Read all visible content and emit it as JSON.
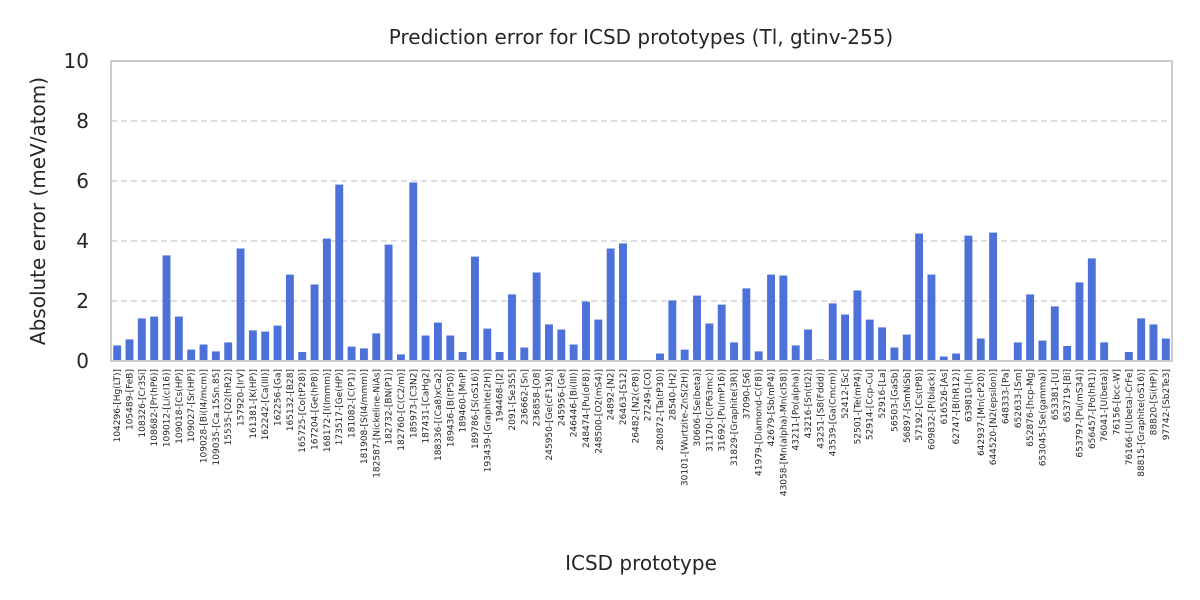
{
  "chart_data": {
    "type": "bar",
    "title": "Prediction error for ICSD prototypes (Tl, gtinv-255)",
    "xlabel": "ICSD prototype",
    "ylabel": "Absolute error (meV/atom)",
    "ylim": [
      0,
      10
    ],
    "yticks": [
      0,
      2,
      4,
      6,
      8,
      10
    ],
    "grid": "y-dashed",
    "bar_color": "#4c72d9",
    "categories": [
      "104296-[Hg(LT)]",
      "105489-[FeB]",
      "108326-[Cr3Si]",
      "108682-[Pr(hP6)]",
      "109012-[Li(cI16)]",
      "109018-[Cs(HP)]",
      "109027-[Sr(HP)]",
      "109028-[Bi(I4/mcm)]",
      "109035-[Ca.15Sn.85]",
      "15535-[O2(hR2)]",
      "157920-[IrV]",
      "161381-[K(HP)]",
      "162242-[Ca(III)]",
      "162256-[Ga]",
      "165132-[B28]",
      "165725-[Co(tP28)]",
      "167204-[Ge(hP8)]",
      "168172-[I(Immm)]",
      "173517-[Ge(HP)]",
      "181082-[C(P1)]",
      "181908-[S(I4/mmm)]",
      "182587-[Nickeline-NiAs]",
      "182732-[BN(P1)]",
      "182760-[C(C2/m)]",
      "185973-[C3N2]",
      "187431-[CaHg2]",
      "188336-[(Ca8)xCa2]",
      "189436-[B(tP50)]",
      "189460-[MnP]",
      "189786-[S(oS16)]",
      "193439-[Graphite(2H)]",
      "194468-[I2]",
      "2091-[Se3S5]",
      "236662-[Sn]",
      "236858-[O8]",
      "245950-[Ge(cF136)]",
      "245956-[Ge]",
      "246446-[Bi(III)]",
      "248474-[Pu(oF8)]",
      "248500-[O2(mS4)]",
      "24892-[N2]",
      "26463-[S12]",
      "26482-[N2(cP8)]",
      "27249-[CO]",
      "280872-[Ta(tP30)]",
      "28540-[H2]",
      "30101-[Wurtzite-ZnS(2H)]",
      "30606-[Se(beta)]",
      "31170-[C(P63mc)]",
      "31692-[Pu(mP16)]",
      "31829-[Graphite(3R)]",
      "37090-[S6]",
      "41979-[Diamond-C(F8)]",
      "42679-[Sb(mP4)]",
      "43058-[Mn(alpha)-Mn(cI58)]",
      "43211-[Po(alpha)]",
      "43216-[Sn(tI2)]",
      "43251-[S8(Fddd)]",
      "43539-[Ga(Cmcm)]",
      "52412-[Sc]",
      "52501-[Te(mP4)]",
      "52914-[Ccp-Cu]",
      "52916-[La]",
      "56503-[GaSb]",
      "56897-[SmNiSb]",
      "57192-[Cs(tP8)]",
      "609832-[P(black)]",
      "616526-[As]",
      "62747-[B(hR12)]",
      "639810-[In]",
      "642937-[Mn(cP20)]",
      "644520-[N2(epsilon)]",
      "648333-[Pa]",
      "652633-[Sm]",
      "652876-[hcp-Mg]",
      "653045-[Se(gamma)]",
      "653381-[U]",
      "653719-[Bi]",
      "653797-[Pu(mS34)]",
      "656457-[Po(hR1)]",
      "76041-[U(beta)]",
      "76156-[bcc-W]",
      "76166-[U(beta)-CrFe]",
      "88815-[Graphite(oS16)]",
      "88820-[Si(HP)]",
      "97742-[Sb2Te3]"
    ],
    "values": [
      0.52,
      0.72,
      1.42,
      1.48,
      3.52,
      1.48,
      0.38,
      0.55,
      0.32,
      0.62,
      3.75,
      1.02,
      0.98,
      1.18,
      2.88,
      0.3,
      2.55,
      4.08,
      5.88,
      0.48,
      0.42,
      0.92,
      3.88,
      0.22,
      5.95,
      0.85,
      1.28,
      0.85,
      0.3,
      3.48,
      1.08,
      0.3,
      2.22,
      0.45,
      2.95,
      1.22,
      1.05,
      0.55,
      1.98,
      1.38,
      3.75,
      3.92,
      0.0,
      0.0,
      0.25,
      2.02,
      0.38,
      2.18,
      1.25,
      1.88,
      0.62,
      2.42,
      0.32,
      2.88,
      2.85,
      0.52,
      1.05,
      0.05,
      1.92,
      1.55,
      2.35,
      1.38,
      1.12,
      0.45,
      0.88,
      4.25,
      2.88,
      0.15,
      0.25,
      4.18,
      0.75,
      4.28,
      0.0,
      0.62,
      2.22,
      0.68,
      1.82,
      0.5,
      2.62,
      3.42,
      0.62,
      0.0,
      0.3,
      1.42,
      1.22,
      0.75
    ]
  }
}
